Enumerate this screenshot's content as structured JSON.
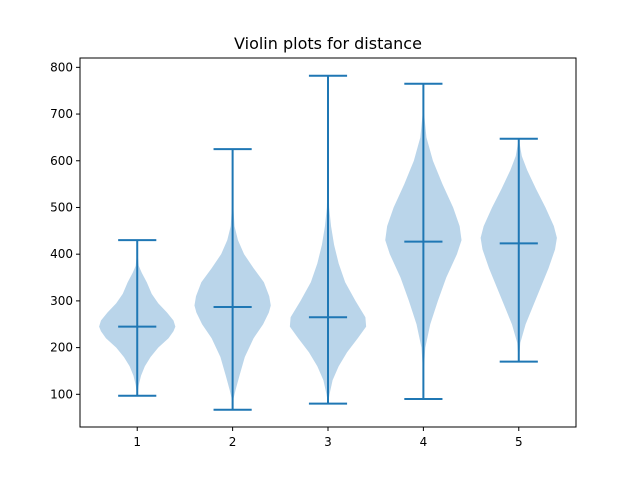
{
  "chart_data": {
    "type": "violin",
    "title": "Violin plots for distance",
    "xlabel": "",
    "ylabel": "",
    "categories": [
      "1",
      "2",
      "3",
      "4",
      "5"
    ],
    "ylim": [
      30,
      820
    ],
    "xlim": [
      0.4,
      5.6
    ],
    "yticks": [
      100,
      200,
      300,
      400,
      500,
      600,
      700,
      800
    ],
    "grid": false,
    "colors": {
      "body": "#bad5ea",
      "lines": "#1f77b4"
    },
    "violins": [
      {
        "category": "1",
        "min": 97,
        "max": 430,
        "median": 245,
        "density": [
          [
            97,
            0.0
          ],
          [
            120,
            0.04
          ],
          [
            140,
            0.1
          ],
          [
            160,
            0.2
          ],
          [
            180,
            0.35
          ],
          [
            200,
            0.55
          ],
          [
            220,
            0.82
          ],
          [
            235,
            0.95
          ],
          [
            245,
            1.0
          ],
          [
            258,
            0.95
          ],
          [
            275,
            0.78
          ],
          [
            295,
            0.55
          ],
          [
            315,
            0.38
          ],
          [
            340,
            0.25
          ],
          [
            360,
            0.12
          ],
          [
            375,
            0.04
          ],
          [
            400,
            0.01
          ],
          [
            430,
            0.0
          ]
        ]
      },
      {
        "category": "2",
        "min": 67,
        "max": 625,
        "median": 287,
        "density": [
          [
            67,
            0.0
          ],
          [
            90,
            0.02
          ],
          [
            110,
            0.08
          ],
          [
            140,
            0.18
          ],
          [
            180,
            0.32
          ],
          [
            220,
            0.55
          ],
          [
            250,
            0.8
          ],
          [
            275,
            0.95
          ],
          [
            290,
            1.0
          ],
          [
            310,
            0.96
          ],
          [
            340,
            0.82
          ],
          [
            370,
            0.55
          ],
          [
            400,
            0.3
          ],
          [
            430,
            0.14
          ],
          [
            460,
            0.05
          ],
          [
            500,
            0.02
          ],
          [
            560,
            0.01
          ],
          [
            625,
            0.0
          ]
        ]
      },
      {
        "category": "3",
        "min": 80,
        "max": 782,
        "median": 265,
        "density": [
          [
            80,
            0.0
          ],
          [
            100,
            0.04
          ],
          [
            130,
            0.12
          ],
          [
            160,
            0.28
          ],
          [
            190,
            0.5
          ],
          [
            220,
            0.78
          ],
          [
            245,
            1.0
          ],
          [
            265,
            0.98
          ],
          [
            300,
            0.72
          ],
          [
            340,
            0.45
          ],
          [
            380,
            0.28
          ],
          [
            420,
            0.16
          ],
          [
            460,
            0.08
          ],
          [
            500,
            0.03
          ],
          [
            560,
            0.01
          ],
          [
            650,
            0.005
          ],
          [
            782,
            0.0
          ]
        ]
      },
      {
        "category": "4",
        "min": 90,
        "max": 765,
        "median": 427,
        "density": [
          [
            90,
            0.0
          ],
          [
            150,
            0.01
          ],
          [
            200,
            0.05
          ],
          [
            250,
            0.18
          ],
          [
            300,
            0.38
          ],
          [
            350,
            0.6
          ],
          [
            400,
            0.88
          ],
          [
            430,
            1.0
          ],
          [
            460,
            0.95
          ],
          [
            500,
            0.78
          ],
          [
            550,
            0.5
          ],
          [
            600,
            0.25
          ],
          [
            650,
            0.08
          ],
          [
            700,
            0.02
          ],
          [
            765,
            0.0
          ]
        ]
      },
      {
        "category": "5",
        "min": 170,
        "max": 647,
        "median": 423,
        "density": [
          [
            170,
            0.0
          ],
          [
            210,
            0.04
          ],
          [
            250,
            0.18
          ],
          [
            290,
            0.38
          ],
          [
            330,
            0.58
          ],
          [
            370,
            0.78
          ],
          [
            410,
            0.95
          ],
          [
            435,
            1.0
          ],
          [
            460,
            0.92
          ],
          [
            500,
            0.7
          ],
          [
            540,
            0.45
          ],
          [
            580,
            0.22
          ],
          [
            610,
            0.08
          ],
          [
            647,
            0.0
          ]
        ]
      }
    ]
  }
}
